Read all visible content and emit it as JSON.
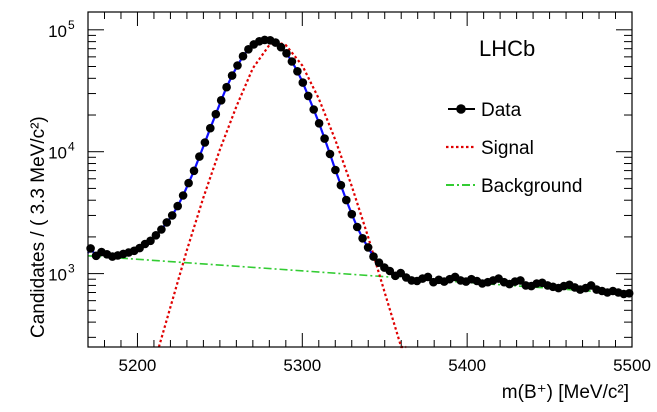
{
  "chart_data": {
    "type": "line",
    "title": "",
    "xlabel": "m(B⁺) [MeV/c²]",
    "ylabel": "Candidates / ( 3.3  MeV/c²)",
    "xlim": [
      5170,
      5500
    ],
    "ylim": [
      250,
      140000
    ],
    "yscale": "log",
    "x_ticks": [
      5200,
      5300,
      5400,
      5500
    ],
    "y_ticks": [
      {
        "value": 1000,
        "base": "10",
        "exp": "3"
      },
      {
        "value": 10000,
        "base": "10",
        "exp": "4"
      },
      {
        "value": 100000,
        "base": "10",
        "exp": "5"
      }
    ],
    "watermark": "LHCb",
    "legend_position": "top-right",
    "colors": {
      "data": "#000000",
      "total_fit": "#1010ff",
      "signal": "#e00000",
      "background": "#33cc33"
    },
    "series": [
      {
        "name": "Data",
        "style": "points",
        "x": [
          5171.6,
          5174.9,
          5178.2,
          5181.5,
          5184.8,
          5188.1,
          5191.4,
          5194.7,
          5198.0,
          5201.3,
          5204.6,
          5207.9,
          5211.2,
          5214.5,
          5217.8,
          5221.1,
          5224.4,
          5227.7,
          5231.0,
          5234.3,
          5237.6,
          5240.9,
          5244.2,
          5247.5,
          5250.8,
          5254.1,
          5257.4,
          5260.7,
          5264.0,
          5267.3,
          5270.6,
          5273.9,
          5277.2,
          5280.5,
          5283.8,
          5287.1,
          5290.4,
          5293.7,
          5297.0,
          5300.3,
          5303.6,
          5306.9,
          5310.2,
          5313.5,
          5316.8,
          5320.1,
          5323.4,
          5326.7,
          5330.0,
          5333.3,
          5336.6,
          5339.9,
          5343.2,
          5346.5,
          5349.8,
          5353.1,
          5356.4,
          5359.7,
          5363.0,
          5366.3,
          5369.6,
          5372.9,
          5376.2,
          5379.5,
          5382.8,
          5386.1,
          5389.4,
          5392.7,
          5396.0,
          5399.3,
          5402.6,
          5405.9,
          5409.2,
          5412.5,
          5415.8,
          5419.1,
          5422.4,
          5425.7,
          5429.0,
          5432.3,
          5435.6,
          5438.9,
          5442.2,
          5445.5,
          5448.8,
          5452.1,
          5455.4,
          5458.7,
          5462.0,
          5465.3,
          5468.6,
          5471.9,
          5475.2,
          5478.5,
          5481.8,
          5485.1,
          5488.4,
          5491.7,
          5495.0,
          5498.3
        ],
        "y": [
          1610,
          1400,
          1500,
          1440,
          1380,
          1410,
          1450,
          1490,
          1540,
          1620,
          1750,
          1860,
          2060,
          2300,
          2630,
          3000,
          3580,
          4370,
          5530,
          6970,
          9110,
          11900,
          15600,
          20300,
          26400,
          33800,
          42100,
          51000,
          60800,
          69200,
          75900,
          80500,
          82600,
          82000,
          78600,
          72000,
          64200,
          55000,
          45700,
          36900,
          28700,
          22200,
          17100,
          12800,
          9580,
          7080,
          5310,
          4010,
          3070,
          2410,
          1950,
          1640,
          1380,
          1230,
          1120,
          1050,
          960,
          1010,
          930,
          880,
          870,
          910,
          940,
          850,
          890,
          860,
          900,
          940,
          880,
          860,
          900,
          870,
          830,
          850,
          880,
          910,
          850,
          820,
          860,
          880,
          800,
          790,
          830,
          840,
          800,
          780,
          760,
          790,
          810,
          770,
          740,
          760,
          800,
          740,
          720,
          700,
          720,
          700,
          680,
          690
        ]
      },
      {
        "name": "Signal",
        "style": "dotted",
        "x": [
          5213,
          5220,
          5230,
          5240,
          5250,
          5260,
          5270,
          5280,
          5284,
          5290,
          5300,
          5310,
          5320,
          5330,
          5340,
          5350,
          5360,
          5363
        ],
        "y": [
          250,
          530,
          1560,
          4210,
          10400,
          23500,
          48300,
          74900,
          79800,
          74900,
          51000,
          27200,
          12500,
          5200,
          1990,
          700,
          230,
          200
        ]
      },
      {
        "name": "Background",
        "style": "dashdot",
        "x": [
          5170,
          5500
        ],
        "y": [
          1400,
          680
        ]
      }
    ]
  }
}
